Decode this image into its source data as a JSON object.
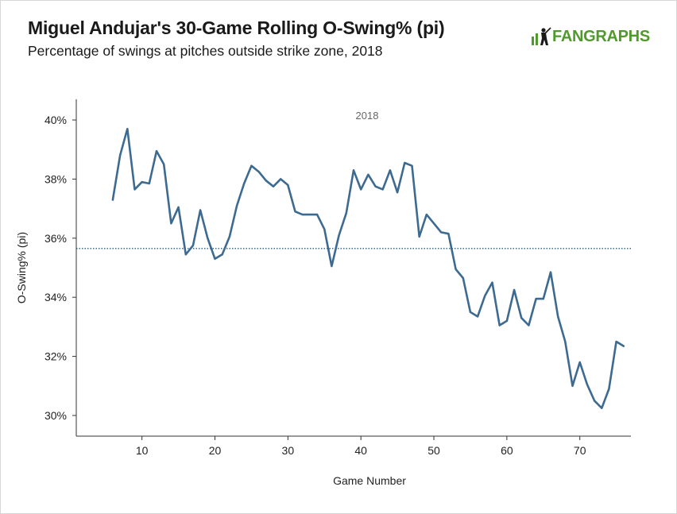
{
  "header": {
    "title": "Miguel Andujar's 30-Game Rolling O-Swing% (pi)",
    "subtitle": "Percentage of swings at pitches outside strike zone, 2018",
    "logo_text": "FANGRAPHS"
  },
  "colors": {
    "line": "#3d6a91",
    "reference_line": "#2f5f86",
    "axis": "#333333",
    "logo": "#4f9a2b"
  },
  "chart_data": {
    "type": "line",
    "title": "Miguel Andujar's 30-Game Rolling O-Swing% (pi)",
    "subtitle": "Percentage of swings at pitches outside strike zone, 2018",
    "xlabel": "Game Number",
    "ylabel": "O-Swing% (pi)",
    "annotation": "2018",
    "xlim": [
      1,
      77
    ],
    "ylim": [
      29.3,
      40.7
    ],
    "x_ticks": [
      10,
      20,
      30,
      40,
      50,
      60,
      70
    ],
    "y_ticks": [
      30,
      32,
      34,
      36,
      38,
      40
    ],
    "y_tick_labels": [
      "30%",
      "32%",
      "34%",
      "36%",
      "38%",
      "40%"
    ],
    "grid": false,
    "reference_line": {
      "y": 35.65,
      "style": "dotted"
    },
    "series": [
      {
        "x": [
          6,
          7,
          8,
          9,
          10,
          11,
          12,
          13,
          14,
          15,
          16,
          17,
          18,
          19,
          20,
          21,
          22,
          23,
          24,
          25,
          26,
          27,
          28,
          29,
          30,
          31,
          32,
          33,
          34,
          35,
          36,
          37,
          38,
          39,
          40,
          41,
          42,
          43,
          44,
          45,
          46,
          47,
          48,
          49,
          50,
          51,
          52,
          53,
          54,
          55,
          56,
          57,
          58,
          59,
          60,
          61,
          62,
          63,
          64,
          65,
          66,
          67,
          68,
          69,
          70,
          71,
          72,
          73,
          74,
          75,
          76
        ],
        "values": [
          37.3,
          38.8,
          39.7,
          37.65,
          37.9,
          37.85,
          38.95,
          38.5,
          36.5,
          37.05,
          35.45,
          35.75,
          36.95,
          36.0,
          35.3,
          35.45,
          36.05,
          37.1,
          37.85,
          38.45,
          38.25,
          37.95,
          37.75,
          38.0,
          37.8,
          36.9,
          36.8,
          36.8,
          36.8,
          36.3,
          35.05,
          36.1,
          36.85,
          38.3,
          37.65,
          38.15,
          37.75,
          37.65,
          38.3,
          37.55,
          38.55,
          38.45,
          36.05,
          36.8,
          36.5,
          36.2,
          36.15,
          34.95,
          34.65,
          33.5,
          33.35,
          34.05,
          34.5,
          33.05,
          33.2,
          34.25,
          33.3,
          33.05,
          33.95,
          33.95,
          34.85,
          33.35,
          32.5,
          31.0,
          31.8,
          31.05,
          30.5,
          30.25,
          30.9,
          32.5,
          32.35
        ]
      }
    ]
  }
}
